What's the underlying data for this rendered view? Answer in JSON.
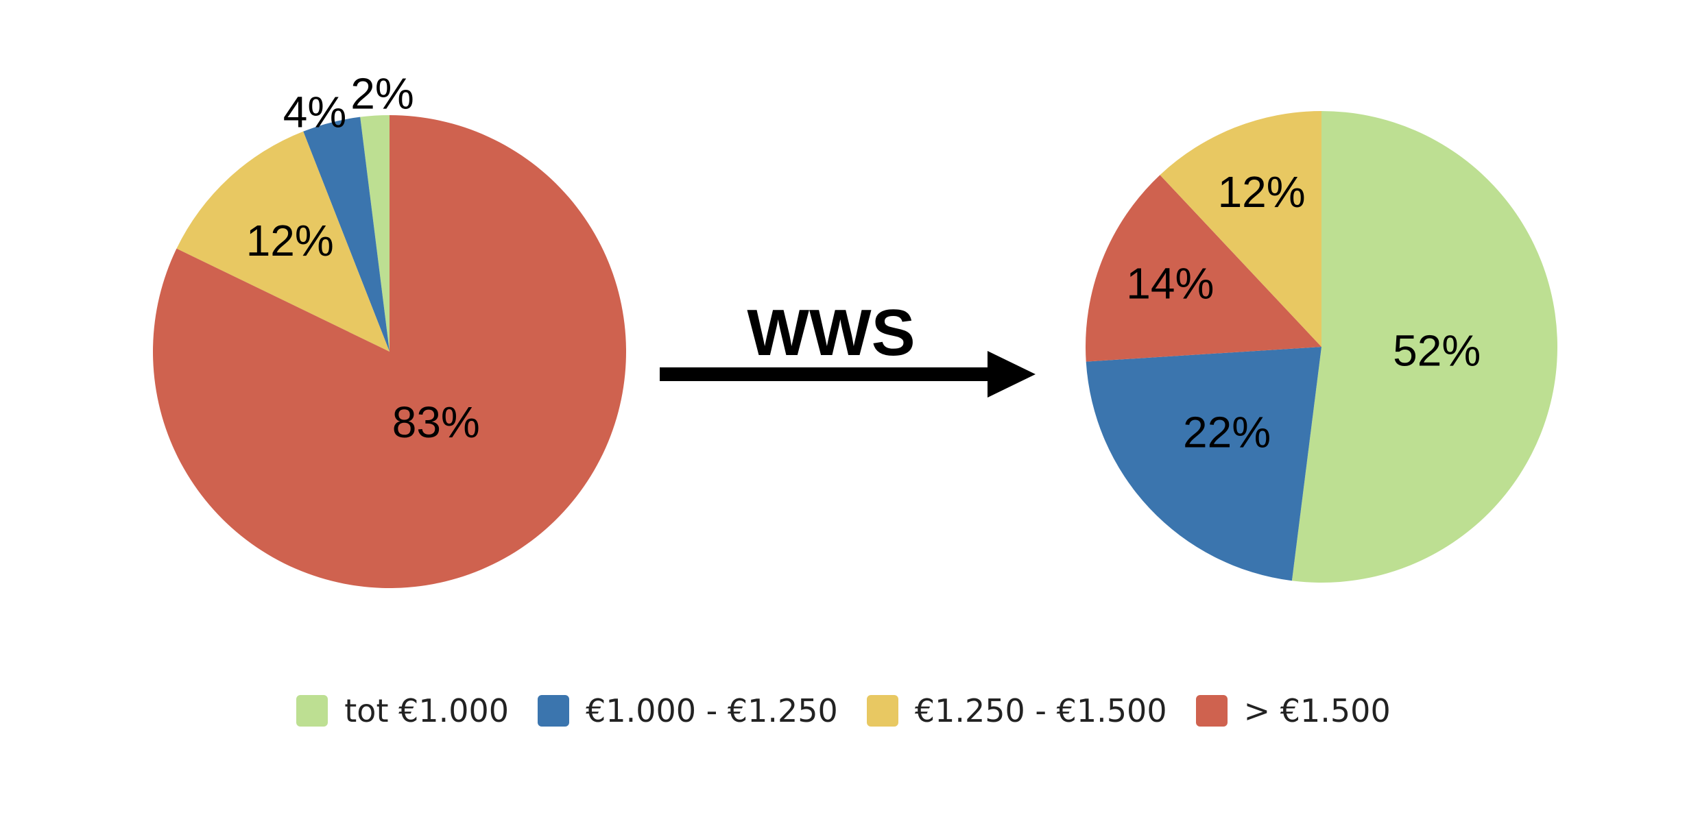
{
  "chart_data": [
    {
      "type": "pie",
      "slices": [
        {
          "category": "tot €1.000",
          "value": 2,
          "label": "2%"
        },
        {
          "category": "€1.000 - €1.250",
          "value": 4,
          "label": "4%"
        },
        {
          "category": "€1.250 - €1.500",
          "value": 12,
          "label": "12%"
        },
        {
          "category": "> €1.500",
          "value": 83,
          "label": "83%"
        }
      ]
    },
    {
      "type": "pie",
      "slices": [
        {
          "category": "tot €1.000",
          "value": 52,
          "label": "52%"
        },
        {
          "category": "€1.000 - €1.250",
          "value": 22,
          "label": "22%"
        },
        {
          "category": "> €1.500",
          "value": 14,
          "label": "14%"
        },
        {
          "category": "€1.250 - €1.500",
          "value": 12,
          "label": "12%"
        }
      ]
    }
  ],
  "arrow_label": "WWS",
  "legend": [
    {
      "label": "tot €1.000",
      "color": "#bddf92"
    },
    {
      "label": "€1.000 - €1.250",
      "color": "#3b75ae"
    },
    {
      "label": "€1.250 - €1.500",
      "color": "#e8c862"
    },
    {
      "label": "> €1.500",
      "color": "#cf624f"
    }
  ]
}
